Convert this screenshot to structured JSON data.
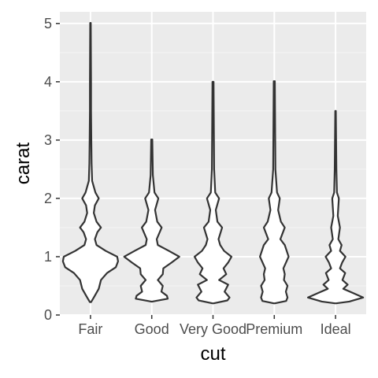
{
  "chart_data": {
    "type": "violin",
    "title": "",
    "xlabel": "cut",
    "ylabel": "carat",
    "categories": [
      "Fair",
      "Good",
      "Very Good",
      "Premium",
      "Ideal"
    ],
    "ylim": [
      0,
      5.2
    ],
    "yticks": [
      0,
      1,
      2,
      3,
      4,
      5
    ],
    "grid": true,
    "legend": "none",
    "range": [
      {
        "min": 0.22,
        "max": 5.01
      },
      {
        "min": 0.23,
        "max": 3.01
      },
      {
        "min": 0.2,
        "max": 4.0
      },
      {
        "min": 0.2,
        "max": 4.01
      },
      {
        "min": 0.2,
        "max": 3.5
      }
    ],
    "density_profiles": [
      [
        [
          0.22,
          0.02
        ],
        [
          0.3,
          0.12
        ],
        [
          0.45,
          0.3
        ],
        [
          0.6,
          0.38
        ],
        [
          0.72,
          0.6
        ],
        [
          0.82,
          0.92
        ],
        [
          0.92,
          1.0
        ],
        [
          1.0,
          0.97
        ],
        [
          1.1,
          0.55
        ],
        [
          1.2,
          0.22
        ],
        [
          1.3,
          0.16
        ],
        [
          1.42,
          0.25
        ],
        [
          1.5,
          0.38
        ],
        [
          1.6,
          0.22
        ],
        [
          1.75,
          0.12
        ],
        [
          1.88,
          0.16
        ],
        [
          2.0,
          0.3
        ],
        [
          2.1,
          0.18
        ],
        [
          2.3,
          0.06
        ],
        [
          2.6,
          0.04
        ],
        [
          3.0,
          0.03
        ],
        [
          3.5,
          0.02
        ],
        [
          4.0,
          0.02
        ],
        [
          5.01,
          0.01
        ]
      ],
      [
        [
          0.23,
          0.02
        ],
        [
          0.28,
          0.58
        ],
        [
          0.33,
          0.55
        ],
        [
          0.4,
          0.35
        ],
        [
          0.5,
          0.4
        ],
        [
          0.6,
          0.22
        ],
        [
          0.7,
          0.4
        ],
        [
          0.8,
          0.42
        ],
        [
          0.9,
          0.72
        ],
        [
          1.0,
          1.0
        ],
        [
          1.1,
          0.62
        ],
        [
          1.2,
          0.22
        ],
        [
          1.3,
          0.18
        ],
        [
          1.5,
          0.36
        ],
        [
          1.6,
          0.2
        ],
        [
          1.8,
          0.12
        ],
        [
          2.0,
          0.24
        ],
        [
          2.1,
          0.1
        ],
        [
          2.4,
          0.04
        ],
        [
          3.01,
          0.02
        ]
      ],
      [
        [
          0.2,
          0.02
        ],
        [
          0.25,
          0.52
        ],
        [
          0.3,
          0.6
        ],
        [
          0.4,
          0.42
        ],
        [
          0.52,
          0.55
        ],
        [
          0.6,
          0.22
        ],
        [
          0.7,
          0.48
        ],
        [
          0.8,
          0.38
        ],
        [
          0.9,
          0.55
        ],
        [
          1.0,
          0.67
        ],
        [
          1.1,
          0.4
        ],
        [
          1.2,
          0.26
        ],
        [
          1.3,
          0.2
        ],
        [
          1.5,
          0.33
        ],
        [
          1.6,
          0.16
        ],
        [
          1.8,
          0.1
        ],
        [
          2.0,
          0.22
        ],
        [
          2.1,
          0.08
        ],
        [
          2.5,
          0.04
        ],
        [
          4.0,
          0.02
        ]
      ],
      [
        [
          0.2,
          0.02
        ],
        [
          0.24,
          0.43
        ],
        [
          0.3,
          0.48
        ],
        [
          0.4,
          0.42
        ],
        [
          0.5,
          0.48
        ],
        [
          0.6,
          0.35
        ],
        [
          0.7,
          0.38
        ],
        [
          0.8,
          0.33
        ],
        [
          1.0,
          0.52
        ],
        [
          1.1,
          0.45
        ],
        [
          1.2,
          0.38
        ],
        [
          1.3,
          0.22
        ],
        [
          1.5,
          0.38
        ],
        [
          1.6,
          0.24
        ],
        [
          1.8,
          0.14
        ],
        [
          2.0,
          0.2
        ],
        [
          2.1,
          0.1
        ],
        [
          2.5,
          0.04
        ],
        [
          4.01,
          0.02
        ]
      ],
      [
        [
          0.2,
          0.02
        ],
        [
          0.23,
          0.5
        ],
        [
          0.3,
          1.0
        ],
        [
          0.38,
          0.62
        ],
        [
          0.45,
          0.28
        ],
        [
          0.52,
          0.44
        ],
        [
          0.6,
          0.25
        ],
        [
          0.72,
          0.35
        ],
        [
          0.8,
          0.16
        ],
        [
          0.9,
          0.24
        ],
        [
          1.0,
          0.36
        ],
        [
          1.1,
          0.16
        ],
        [
          1.2,
          0.22
        ],
        [
          1.3,
          0.1
        ],
        [
          1.5,
          0.16
        ],
        [
          1.7,
          0.08
        ],
        [
          2.0,
          0.12
        ],
        [
          2.1,
          0.05
        ],
        [
          2.5,
          0.03
        ],
        [
          3.5,
          0.01
        ]
      ]
    ]
  }
}
